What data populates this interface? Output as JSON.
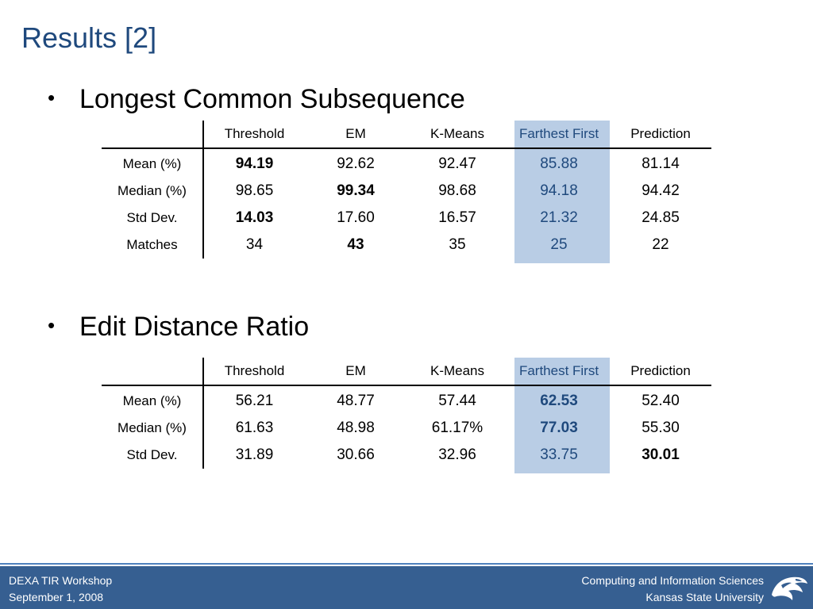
{
  "slide": {
    "title": "Results [2]"
  },
  "section1": {
    "bullet": "•",
    "heading": "Longest Common Subsequence",
    "columns": [
      "Threshold",
      "EM",
      "K-Means",
      "Farthest First",
      "Prediction"
    ],
    "rows": [
      {
        "label": "Mean (%)",
        "values": [
          "94.19",
          "92.62",
          "92.47",
          "85.88",
          "81.14"
        ],
        "bold_index": 0
      },
      {
        "label": "Median (%)",
        "values": [
          "98.65",
          "99.34",
          "98.68",
          "94.18",
          "94.42"
        ],
        "bold_index": 1
      },
      {
        "label": "Std Dev.",
        "values": [
          "14.03",
          "17.60",
          "16.57",
          "21.32",
          "24.85"
        ],
        "bold_index": 0
      },
      {
        "label": "Matches",
        "values": [
          "34",
          "43",
          "35",
          "25",
          "22"
        ],
        "bold_index": 1
      }
    ],
    "highlight_column": "Farthest First"
  },
  "section2": {
    "bullet": "•",
    "heading": "Edit Distance Ratio",
    "columns": [
      "Threshold",
      "EM",
      "K-Means",
      "Farthest First",
      "Prediction"
    ],
    "rows": [
      {
        "label": "Mean (%)",
        "values": [
          "56.21",
          "48.77",
          "57.44",
          "62.53",
          "52.40"
        ],
        "bold_index": 3
      },
      {
        "label": "Median (%)",
        "values": [
          "61.63",
          "48.98",
          "61.17%",
          "77.03",
          "55.30"
        ],
        "bold_index": 3
      },
      {
        "label": "Std Dev.",
        "values": [
          "31.89",
          "30.66",
          "32.96",
          "33.75",
          "30.01"
        ],
        "bold_index": 4
      }
    ],
    "highlight_column": "Farthest First"
  },
  "footer": {
    "left_line1": "DEXA TIR Workshop",
    "left_line2": "September 1, 2008",
    "right_line1": "Computing and Information Sciences",
    "right_line2": "Kansas State University",
    "logo_icon": "wildcat-logo-icon"
  },
  "colors": {
    "title": "#1f497d",
    "highlight_column": "#b9cde5",
    "footer_bg": "#365f91",
    "footer_line": "#4f81bd"
  }
}
